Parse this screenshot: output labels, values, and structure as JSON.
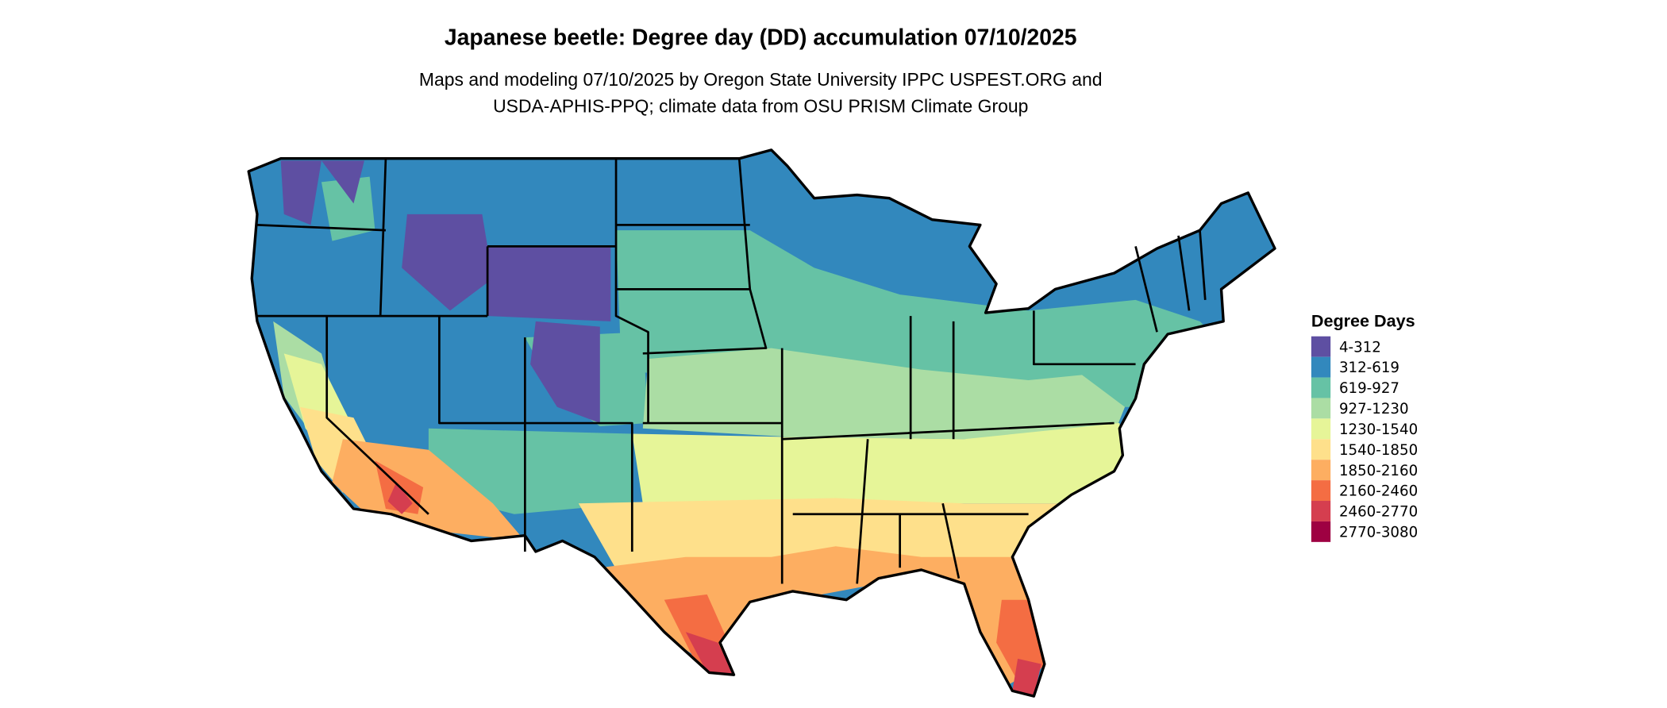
{
  "title": "Japanese beetle: Degree day (DD) accumulation 07/10/2025",
  "subtitle_line1": "Maps and modeling 07/10/2025 by Oregon State University IPPC USPEST.ORG and",
  "subtitle_line2": "USDA-APHIS-PPQ; climate data from OSU PRISM Climate Group",
  "legend": {
    "title": "Degree Days",
    "items": [
      {
        "label": "4-312",
        "color": "#5e4fa2"
      },
      {
        "label": "312-619",
        "color": "#3288bd"
      },
      {
        "label": "619-927",
        "color": "#66c2a5"
      },
      {
        "label": "927-1230",
        "color": "#abdda4"
      },
      {
        "label": "1230-1540",
        "color": "#e6f598"
      },
      {
        "label": "1540-1850",
        "color": "#fee08b"
      },
      {
        "label": "1850-2160",
        "color": "#fdae61"
      },
      {
        "label": "2160-2460",
        "color": "#f46d43"
      },
      {
        "label": "2460-2770",
        "color": "#d53e4f"
      },
      {
        "label": "2770-3080",
        "color": "#9e0142"
      }
    ]
  }
}
